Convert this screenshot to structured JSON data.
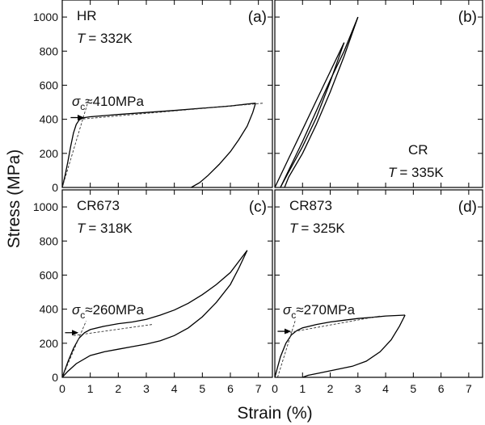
{
  "figure": {
    "ylabel": "Stress (MPa)",
    "xlabel": "Strain (%)"
  },
  "chart_data": [
    {
      "type": "line",
      "panel": "(a)",
      "sample": "HR",
      "temperature": "= 332K",
      "annotation": {
        "sigma": "σ",
        "sub": "c",
        "text": "≈410MPa",
        "value_mpa": 410
      },
      "xlim": [
        0,
        7.5
      ],
      "ylim": [
        0,
        1100
      ],
      "xticks": [
        0,
        1,
        2,
        3,
        4,
        5,
        6,
        7
      ],
      "yticks": [
        0,
        200,
        400,
        600,
        800,
        1000
      ],
      "loading": [
        [
          0,
          0
        ],
        [
          0.1,
          70
        ],
        [
          0.2,
          150
        ],
        [
          0.3,
          240
        ],
        [
          0.4,
          320
        ],
        [
          0.5,
          370
        ],
        [
          0.6,
          395
        ],
        [
          0.7,
          405
        ],
        [
          0.8,
          410
        ],
        [
          1,
          415
        ],
        [
          2,
          428
        ],
        [
          3,
          440
        ],
        [
          4,
          452
        ],
        [
          5,
          465
        ],
        [
          6,
          478
        ],
        [
          6.9,
          495
        ]
      ],
      "unloading": [
        [
          6.9,
          495
        ],
        [
          6.8,
          440
        ],
        [
          6.6,
          360
        ],
        [
          6.3,
          280
        ],
        [
          6,
          210
        ],
        [
          5.6,
          135
        ],
        [
          5.2,
          70
        ],
        [
          4.9,
          28
        ],
        [
          4.6,
          0
        ]
      ],
      "dashed_lines": [
        [
          [
            0,
            0
          ],
          [
            0.95,
            520
          ]
        ],
        [
          [
            0.6,
            400
          ],
          [
            7.2,
            495
          ]
        ]
      ],
      "arrow": {
        "x_start": 0.3,
        "x_end": 0.75,
        "y": 410
      }
    },
    {
      "type": "line",
      "panel": "(b)",
      "sample": "CR",
      "temperature": "= 335K",
      "xlim": [
        0,
        7.5
      ],
      "ylim": [
        0,
        1100
      ],
      "xticks": [
        0,
        1,
        2,
        3,
        4,
        5,
        6,
        7
      ],
      "yticks": [
        0,
        200,
        400,
        600,
        800,
        1000
      ],
      "loop_1_loading": [
        [
          0,
          0
        ],
        [
          0.5,
          170
        ],
        [
          1,
          340
        ],
        [
          1.5,
          510
        ],
        [
          2,
          680
        ],
        [
          2.5,
          850
        ]
      ],
      "loop_1_unloading": [
        [
          2.5,
          850
        ],
        [
          2,
          620
        ],
        [
          1.5,
          410
        ],
        [
          1,
          240
        ],
        [
          0.5,
          90
        ],
        [
          0.2,
          0
        ]
      ],
      "loop_2_loading": [
        [
          0.2,
          0
        ],
        [
          0.5,
          100
        ],
        [
          1,
          270
        ],
        [
          1.5,
          450
        ],
        [
          2,
          630
        ],
        [
          2.5,
          800
        ],
        [
          3,
          1000
        ]
      ],
      "loop_2_unloading": [
        [
          3,
          1000
        ],
        [
          2.5,
          770
        ],
        [
          2,
          560
        ],
        [
          1.5,
          370
        ],
        [
          1,
          200
        ],
        [
          0.5,
          60
        ],
        [
          0.35,
          0
        ]
      ]
    },
    {
      "type": "line",
      "panel": "(c)",
      "sample": "CR673",
      "temperature": "= 318K",
      "annotation": {
        "sigma": "σ",
        "sub": "c",
        "text": "≈260MPa",
        "value_mpa": 260
      },
      "xlim": [
        0,
        7.5
      ],
      "ylim": [
        0,
        1100
      ],
      "xticks": [
        0,
        1,
        2,
        3,
        4,
        5,
        6,
        7
      ],
      "yticks": [
        0,
        200,
        400,
        600,
        800,
        1000
      ],
      "loading": [
        [
          0,
          0
        ],
        [
          0.2,
          90
        ],
        [
          0.4,
          170
        ],
        [
          0.6,
          230
        ],
        [
          0.8,
          262
        ],
        [
          1,
          280
        ],
        [
          1.5,
          300
        ],
        [
          2,
          315
        ],
        [
          2.5,
          325
        ],
        [
          3,
          340
        ],
        [
          3.5,
          365
        ],
        [
          4,
          395
        ],
        [
          4.5,
          435
        ],
        [
          5,
          485
        ],
        [
          5.5,
          545
        ],
        [
          6,
          615
        ],
        [
          6.6,
          745
        ]
      ],
      "unloading": [
        [
          6.6,
          745
        ],
        [
          6.3,
          640
        ],
        [
          6,
          545
        ],
        [
          5.5,
          440
        ],
        [
          5,
          355
        ],
        [
          4.5,
          290
        ],
        [
          4,
          245
        ],
        [
          3.5,
          215
        ],
        [
          3,
          195
        ],
        [
          2.5,
          180
        ],
        [
          2,
          165
        ],
        [
          1.5,
          150
        ],
        [
          1,
          128
        ],
        [
          0.5,
          80
        ],
        [
          0.2,
          35
        ],
        [
          0,
          0
        ]
      ],
      "dashed_lines": [
        [
          [
            0,
            0
          ],
          [
            0.85,
            330
          ]
        ],
        [
          [
            0.4,
            245
          ],
          [
            3.2,
            310
          ]
        ]
      ],
      "arrow": {
        "x_start": 0.1,
        "x_end": 0.55,
        "y": 262
      }
    },
    {
      "type": "line",
      "panel": "(d)",
      "sample": "CR873",
      "temperature": "= 325K",
      "annotation": {
        "sigma": "σ",
        "sub": "c",
        "text": "≈270MPa",
        "value_mpa": 270
      },
      "xlim": [
        0,
        7.5
      ],
      "ylim": [
        0,
        1100
      ],
      "xticks": [
        0,
        1,
        2,
        3,
        4,
        5,
        6,
        7
      ],
      "yticks": [
        0,
        200,
        400,
        600,
        800,
        1000
      ],
      "loading": [
        [
          0,
          0
        ],
        [
          0.2,
          120
        ],
        [
          0.4,
          200
        ],
        [
          0.6,
          250
        ],
        [
          0.8,
          275
        ],
        [
          1,
          290
        ],
        [
          1.5,
          310
        ],
        [
          2,
          325
        ],
        [
          2.5,
          335
        ],
        [
          3,
          345
        ],
        [
          3.5,
          352
        ],
        [
          4,
          360
        ],
        [
          4.7,
          365
        ]
      ],
      "unloading": [
        [
          4.7,
          365
        ],
        [
          4.5,
          300
        ],
        [
          4.2,
          220
        ],
        [
          3.8,
          150
        ],
        [
          3.3,
          95
        ],
        [
          2.8,
          65
        ],
        [
          2.2,
          45
        ],
        [
          1.6,
          25
        ],
        [
          1.2,
          12
        ],
        [
          1,
          0
        ]
      ],
      "dashed_lines": [
        [
          [
            0.1,
            0
          ],
          [
            0.75,
            340
          ]
        ],
        [
          [
            0.4,
            260
          ],
          [
            3.8,
            360
          ]
        ]
      ],
      "arrow": {
        "x_start": 0.1,
        "x_end": 0.55,
        "y": 270
      }
    }
  ]
}
